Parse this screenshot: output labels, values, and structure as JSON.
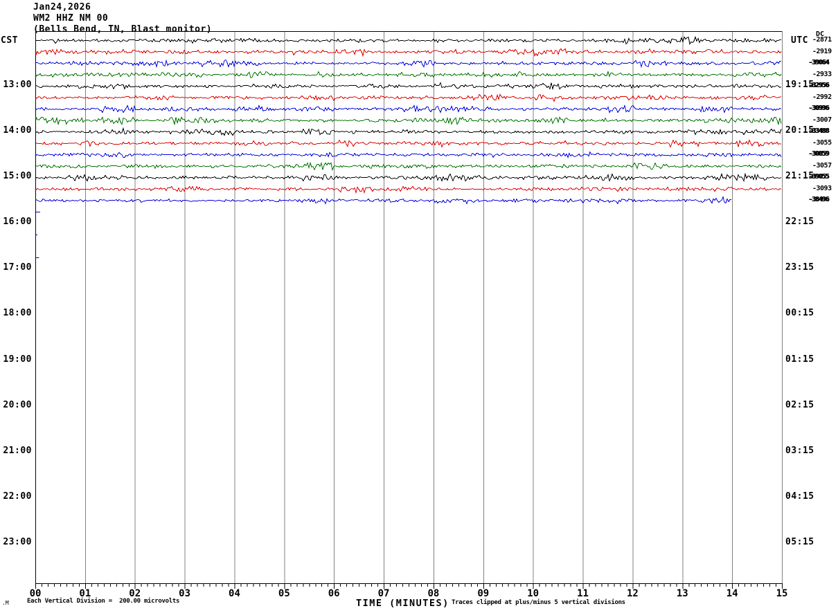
{
  "header": {
    "date_line": "Jan24,2026",
    "station_line": "WM2 HHZ NM 00",
    "location_line": "(Bells Bend, TN, Blast monitor)"
  },
  "axis_labels": {
    "left": "CST",
    "right": "UTC",
    "dc_header": "DC",
    "x_title": "TIME (MINUTES)"
  },
  "footer": {
    "watermark": ".M",
    "scale_note": "Each Vertical Division =  200.00 microvolts",
    "clip_note": "Traces clipped at plus/minus 5 vertical divisions"
  },
  "left_times": [
    "13:00",
    "14:00",
    "15:00",
    "16:00",
    "17:00",
    "18:00",
    "19:00",
    "20:00",
    "21:00",
    "22:00",
    "23:00"
  ],
  "right_times": [
    "19:15",
    "20:15",
    "21:15",
    "22:15",
    "23:15",
    "00:15",
    "01:15",
    "02:15",
    "03:15",
    "04:15",
    "05:15"
  ],
  "x_tick_labels": [
    "00",
    "01",
    "02",
    "03",
    "04",
    "05",
    "06",
    "07",
    "08",
    "09",
    "10",
    "11",
    "12",
    "13",
    "14",
    "15"
  ],
  "colors": {
    "trace_black": "#000000",
    "trace_red": "#dd0000",
    "trace_blue": "#0000dd",
    "trace_green": "#007200",
    "grid": "#808080",
    "frame": "#000000",
    "background": "#ffffff",
    "text": "#000000"
  },
  "chart_data": {
    "type": "line",
    "title": "WM2 HHZ NM 00 (Bells Bend, TN, Blast monitor) helicorder, Jan24,2026",
    "xlabel": "TIME (MINUTES)",
    "x_range": [
      0,
      15
    ],
    "x_minor_per_major": 8,
    "minutes_per_line": 15,
    "left_axis": {
      "label": "CST",
      "hour_ticks": [
        "13:00",
        "14:00",
        "15:00",
        "16:00",
        "17:00",
        "18:00",
        "19:00",
        "20:00",
        "21:00",
        "22:00",
        "23:00"
      ]
    },
    "right_axis": {
      "label": "UTC",
      "hour_ticks": [
        "19:15",
        "20:15",
        "21:15",
        "22:15",
        "23:15",
        "00:15",
        "01:15",
        "02:15",
        "03:15",
        "04:15",
        "05:15"
      ]
    },
    "vertical_division": "200.00 microvolts",
    "clip_limit": "plus/minus 5 vertical divisions",
    "rows": [
      {
        "row": 0,
        "color": "black",
        "end_minute": 15,
        "dc": "-2871",
        "dc_overstruck": false
      },
      {
        "row": 1,
        "color": "red",
        "end_minute": 15,
        "dc": "-2919",
        "dc_overstruck": false
      },
      {
        "row": 2,
        "color": "blue",
        "end_minute": 15,
        "dc": "-39064",
        "dc_overstruck": true
      },
      {
        "row": 3,
        "color": "green",
        "end_minute": 15,
        "dc": "-2933",
        "dc_overstruck": false
      },
      {
        "row": 4,
        "color": "black",
        "end_minute": 15,
        "dc": "-32956",
        "dc_overstruck": true
      },
      {
        "row": 5,
        "color": "red",
        "end_minute": 15,
        "dc": "-2992",
        "dc_overstruck": false
      },
      {
        "row": 6,
        "color": "blue",
        "end_minute": 15,
        "dc": "-30996",
        "dc_overstruck": true
      },
      {
        "row": 7,
        "color": "green",
        "end_minute": 15,
        "dc": "-3007",
        "dc_overstruck": false
      },
      {
        "row": 8,
        "color": "black",
        "end_minute": 15,
        "dc": "-33488",
        "dc_overstruck": true
      },
      {
        "row": 9,
        "color": "red",
        "end_minute": 15,
        "dc": "-3055",
        "dc_overstruck": false
      },
      {
        "row": 10,
        "color": "blue",
        "end_minute": 15,
        "dc": "-30859",
        "dc_overstruck": true
      },
      {
        "row": 11,
        "color": "green",
        "end_minute": 15,
        "dc": "-3057",
        "dc_overstruck": false
      },
      {
        "row": 12,
        "color": "black",
        "end_minute": 15,
        "dc": "-39055",
        "dc_overstruck": true
      },
      {
        "row": 13,
        "color": "red",
        "end_minute": 15,
        "dc": "-3093",
        "dc_overstruck": false
      },
      {
        "row": 14,
        "color": "blue",
        "end_minute": 14,
        "dc": "-38496",
        "dc_overstruck": true
      }
    ],
    "partial_marks": [
      {
        "row": 15,
        "from_minute": 0,
        "to_minute": 0.1,
        "color": "blue"
      },
      {
        "row": 17,
        "from_minute": 0,
        "to_minute": 0.03,
        "color": "blue"
      },
      {
        "row": 19,
        "from_minute": 0,
        "to_minute": 0.08,
        "color": "blue"
      }
    ]
  }
}
